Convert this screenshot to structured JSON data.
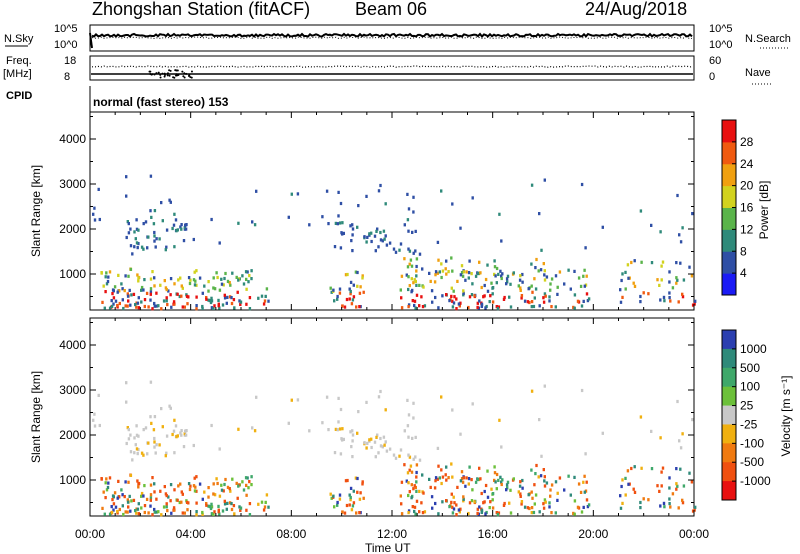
{
  "header": {
    "station": "Zhongshan Station (fitACF)",
    "beam": "Beam 06",
    "date": "24/Aug/2018"
  },
  "panels": {
    "nsky": {
      "left_label": "N.Sky",
      "right_label": "N.Search",
      "left_ticks": [
        "10^5",
        "10^0"
      ],
      "right_ticks": [
        "10^5",
        "10^0"
      ]
    },
    "freq": {
      "left_label_1": "Freq.",
      "left_label_2": "[MHz]",
      "right_label": "Nave",
      "left_ticks": [
        "18",
        "8"
      ],
      "right_ticks": [
        "60",
        "0"
      ]
    },
    "cpid": {
      "label": "CPID",
      "text": "normal (fast stereo) 153"
    }
  },
  "chart_data": [
    {
      "type": "heatmap",
      "name": "power",
      "ylabel": "Slant Range [km]",
      "ylim": [
        200,
        4600
      ],
      "yticks": [
        "1000",
        "2000",
        "3000",
        "4000"
      ],
      "colorbar_label": "Power [dB]",
      "colorbar_ticks": [
        "4",
        "8",
        "12",
        "16",
        "20",
        "24",
        "28"
      ],
      "colorbar_range": [
        0,
        32
      ],
      "colors": [
        "#1b1bf5",
        "#2f4fa5",
        "#2f8a7a",
        "#5ab44a",
        "#d2d21e",
        "#f0a010",
        "#f05a10",
        "#e81010"
      ]
    },
    {
      "type": "heatmap",
      "name": "velocity",
      "ylabel": "Slant Range [km]",
      "ylim": [
        200,
        4600
      ],
      "yticks": [
        "1000",
        "2000",
        "3000",
        "4000"
      ],
      "xlabel": "Time UT",
      "xticks": [
        "00:00",
        "04:00",
        "08:00",
        "12:00",
        "16:00",
        "20:00",
        "00:00"
      ],
      "xlim_hours": [
        0,
        24
      ],
      "colorbar_label": "Velocity [m s⁻¹]",
      "colorbar_ticks": [
        "1000",
        "500",
        "100",
        "25",
        "-25",
        "-100",
        "-500",
        "-1000"
      ],
      "colors": [
        "#2b3fb0",
        "#2f8a7a",
        "#3fa86a",
        "#6cc03a",
        "#c8c8c8",
        "#f0b010",
        "#f07a10",
        "#f05010",
        "#e81010"
      ]
    }
  ]
}
